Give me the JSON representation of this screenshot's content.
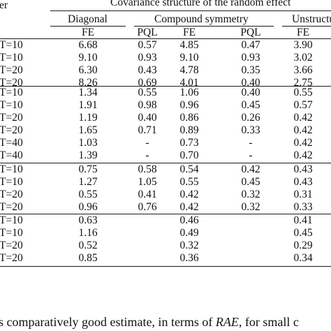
{
  "header": {
    "left_label": "er",
    "group_title": "Covariance structure of the random effect",
    "groups": [
      "Diagonal",
      "Compound symmetry",
      "Unstructu"
    ],
    "subcols": [
      "FE",
      "PQL",
      "FE",
      "PQL",
      "FE"
    ]
  },
  "table": {
    "row_labels": [
      "T=10",
      "T=10",
      "T=20",
      "T=20",
      "T=10",
      "T=10",
      "T=20",
      "T=20",
      "T=40",
      "T=40",
      "T=10",
      "T=10",
      "T=20",
      "T=20",
      "T=10",
      "T=10",
      "T=20",
      "T=20"
    ],
    "rows": [
      [
        "6.68",
        "0.57",
        "4.85",
        "0.47",
        "3.90"
      ],
      [
        "9.10",
        "0.93",
        "9.10",
        "0.93",
        "3.02"
      ],
      [
        "6.30",
        "0.43",
        "4.78",
        "0.35",
        "3.66"
      ],
      [
        "8.26",
        "0.69",
        "4.01",
        "0.40",
        "2.75"
      ],
      [
        "1.34",
        "0.55",
        "1.06",
        "0.40",
        "0.55"
      ],
      [
        "1.91",
        "0.98",
        "0.96",
        "0.45",
        "0.57"
      ],
      [
        "1.19",
        "0.40",
        "0.86",
        "0.26",
        "0.42"
      ],
      [
        "1.65",
        "0.71",
        "0.89",
        "0.33",
        "0.42"
      ],
      [
        "1.03",
        "-",
        "0.73",
        "-",
        "0.42"
      ],
      [
        "1.39",
        "-",
        "0.70",
        "-",
        "0.42"
      ],
      [
        "0.75",
        "0.58",
        "0.54",
        "0.42",
        "0.43"
      ],
      [
        "1.27",
        "1.05",
        "0.55",
        "0.45",
        "0.43"
      ],
      [
        "0.55",
        "0.41",
        "0.42",
        "0.32",
        "0.31"
      ],
      [
        "0.96",
        "0.76",
        "0.42",
        "0.32",
        "0.33"
      ],
      [
        "0.63",
        "",
        "0.46",
        "",
        "0.41"
      ],
      [
        "1.16",
        "",
        "0.49",
        "",
        "0.45"
      ],
      [
        "0.52",
        "",
        "0.32",
        "",
        "0.29"
      ],
      [
        "0.85",
        "",
        "0.36",
        "",
        "0.34"
      ]
    ]
  },
  "caption": {
    "before": "s comparatively good estimate, in terms of ",
    "emph": "RAE",
    "after": ", for small c"
  }
}
